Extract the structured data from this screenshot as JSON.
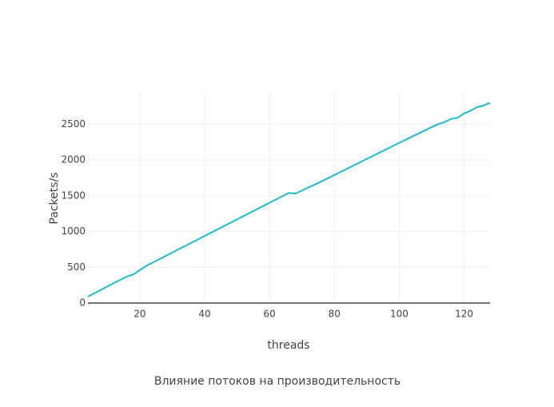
{
  "chart_data": {
    "type": "line",
    "title": "Влияние потоков на производительность",
    "x_label": "threads",
    "y_label": "Packets/s",
    "x": [
      4,
      8,
      12,
      16,
      18,
      20,
      22,
      30,
      40,
      50,
      60,
      66,
      68,
      72,
      76,
      80,
      90,
      100,
      110,
      112,
      114,
      116,
      118,
      120,
      122,
      124,
      126,
      128
    ],
    "series": [
      {
        "name": "Packets/s",
        "color": "#17becf",
        "values": [
          90,
          185,
          280,
          370,
          400,
          460,
          520,
          706,
          938,
          1170,
          1402,
          1540,
          1530,
          1615,
          1700,
          1790,
          2015,
          2240,
          2460,
          2500,
          2530,
          2575,
          2590,
          2650,
          2690,
          2740,
          2760,
          2800
        ]
      }
    ],
    "xlim": [
      4,
      128
    ],
    "xticks": [
      20,
      40,
      60,
      80,
      100,
      120
    ],
    "ylim": [
      0,
      2940
    ],
    "yticks": [
      0,
      500,
      1000,
      1500,
      2000,
      2500
    ],
    "grid": true
  }
}
